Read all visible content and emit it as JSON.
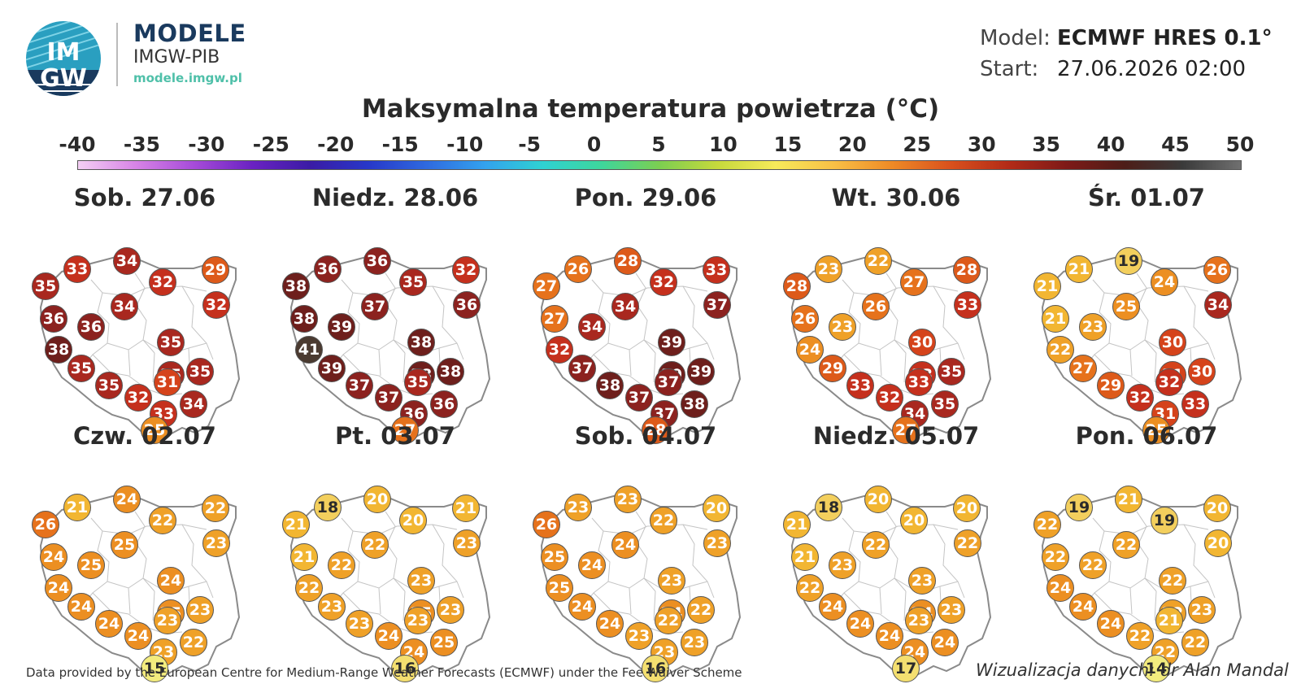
{
  "header": {
    "logo_text": "IMGW",
    "brand_title": "MODELE",
    "brand_sub": "IMGW-PIB",
    "brand_url": "modele.imgw.pl",
    "model_label": "Model:",
    "model_value": "ECMWF HRES 0.1°",
    "start_label": "Start:",
    "start_value": "27.06.2026 02:00"
  },
  "chart_data": {
    "type": "map",
    "title": "Maksymalna temperatura powietrza (°C)",
    "scale_ticks": [
      "-40",
      "-35",
      "-30",
      "-25",
      "-20",
      "-15",
      "-10",
      "-5",
      "0",
      "5",
      "10",
      "15",
      "20",
      "25",
      "30",
      "35",
      "40",
      "45",
      "50"
    ],
    "scale_range": [
      -40,
      50
    ],
    "panels": [
      {
        "label": "Sob. 27.06",
        "values": [
          35,
          33,
          34,
          32,
          29,
          32,
          36,
          36,
          34,
          35,
          35,
          38,
          35,
          35,
          32,
          31,
          35,
          33,
          34,
          25
        ]
      },
      {
        "label": "Niedz. 28.06",
        "values": [
          38,
          36,
          36,
          35,
          32,
          36,
          38,
          39,
          37,
          38,
          38,
          41,
          39,
          37,
          37,
          35,
          38,
          36,
          36,
          27
        ]
      },
      {
        "label": "Pon. 29.06",
        "values": [
          27,
          26,
          28,
          32,
          33,
          37,
          27,
          34,
          34,
          39,
          39,
          32,
          37,
          38,
          37,
          37,
          39,
          37,
          38,
          28
        ]
      },
      {
        "label": "Wt. 30.06",
        "values": [
          28,
          23,
          22,
          27,
          28,
          33,
          26,
          23,
          26,
          30,
          33,
          24,
          29,
          33,
          32,
          33,
          35,
          34,
          35,
          27
        ]
      },
      {
        "label": "Śr. 01.07",
        "values": [
          21,
          21,
          19,
          24,
          26,
          34,
          21,
          23,
          25,
          30,
          31,
          22,
          27,
          29,
          32,
          32,
          30,
          31,
          33,
          25
        ]
      },
      {
        "label": "Czw. 02.07",
        "values": [
          26,
          21,
          24,
          22,
          22,
          23,
          24,
          25,
          25,
          24,
          25,
          24,
          24,
          24,
          24,
          23,
          23,
          23,
          22,
          15
        ]
      },
      {
        "label": "Pt. 03.07",
        "values": [
          21,
          18,
          20,
          20,
          21,
          23,
          21,
          22,
          22,
          23,
          25,
          22,
          23,
          23,
          24,
          23,
          23,
          24,
          25,
          16
        ]
      },
      {
        "label": "Sob. 04.07",
        "values": [
          26,
          23,
          23,
          22,
          20,
          23,
          25,
          24,
          24,
          23,
          24,
          25,
          24,
          24,
          23,
          22,
          22,
          23,
          23,
          16
        ]
      },
      {
        "label": "Niedz. 05.07",
        "values": [
          21,
          18,
          20,
          20,
          20,
          22,
          21,
          23,
          22,
          23,
          24,
          22,
          24,
          24,
          24,
          23,
          23,
          24,
          24,
          17
        ]
      },
      {
        "label": "Pon. 06.07",
        "values": [
          22,
          19,
          21,
          19,
          20,
          20,
          22,
          22,
          22,
          22,
          22,
          24,
          24,
          24,
          22,
          21,
          23,
          22,
          22,
          14
        ]
      }
    ]
  },
  "footer": {
    "data_credit": "Data provided by the European Centre for Medium-Range Weather Forecasts (ECMWF) under the Fee Waiver Scheme",
    "viz_credit": "Wizualizacja danych: dr Alan Mandal"
  },
  "colors": {
    "brand": "#1a3a5e",
    "url": "#4fc0a9",
    "map_outline": "#8a8a8a"
  }
}
